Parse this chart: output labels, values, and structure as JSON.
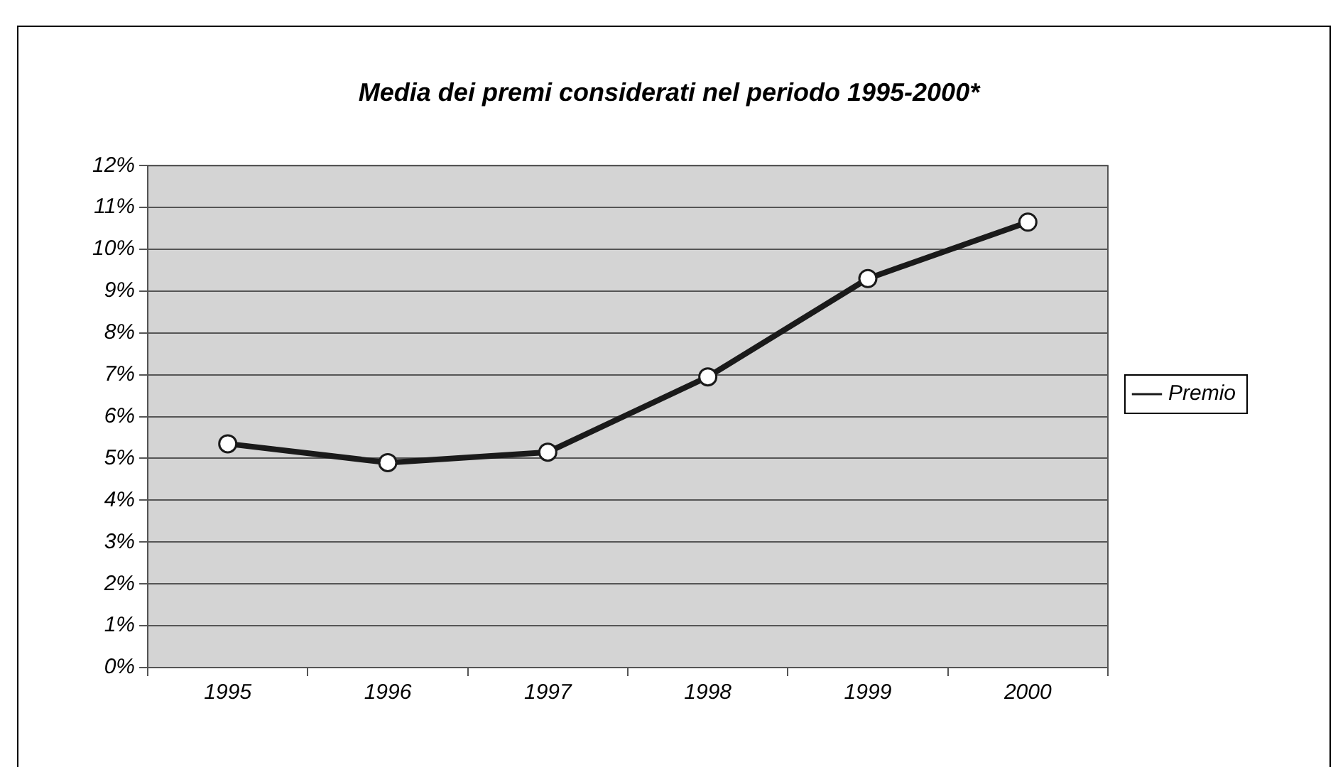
{
  "chart_data": {
    "type": "line",
    "title": "Media dei premi considerati nel periodo 1995-2000*",
    "categories": [
      "1995",
      "1996",
      "1997",
      "1998",
      "1999",
      "2000"
    ],
    "series": [
      {
        "name": "Premio",
        "color": "#1a1a1a",
        "values": [
          5.35,
          4.9,
          5.15,
          6.95,
          9.3,
          10.65
        ]
      }
    ],
    "ylim": [
      0,
      12
    ],
    "yticks": [
      {
        "value": 0,
        "label": "0%"
      },
      {
        "value": 1,
        "label": "1%"
      },
      {
        "value": 2,
        "label": "2%"
      },
      {
        "value": 3,
        "label": "3%"
      },
      {
        "value": 4,
        "label": "4%"
      },
      {
        "value": 5,
        "label": "5%"
      },
      {
        "value": 6,
        "label": "6%"
      },
      {
        "value": 7,
        "label": "7%"
      },
      {
        "value": 8,
        "label": "8%"
      },
      {
        "value": 9,
        "label": "9%"
      },
      {
        "value": 10,
        "label": "10%"
      },
      {
        "value": 11,
        "label": "11%"
      },
      {
        "value": 12,
        "label": "12%"
      }
    ],
    "grid": "y",
    "legend": "right",
    "marker": "circle",
    "line_style": "solid"
  }
}
